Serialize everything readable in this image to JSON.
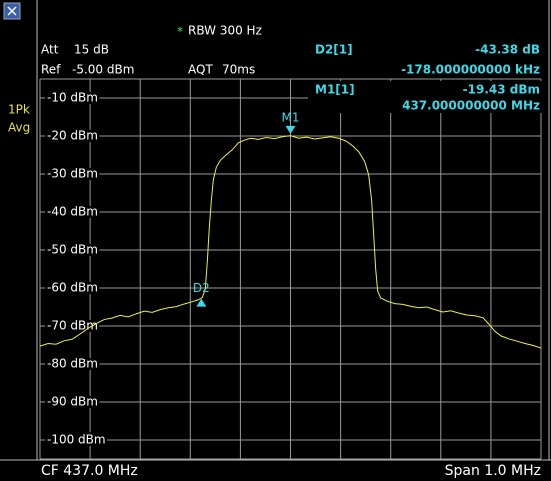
{
  "header": {
    "rbw_flag": "*",
    "rbw": "RBW 300 Hz",
    "att_label": "Att",
    "att": "15 dB",
    "ref_label": "Ref",
    "ref": "-5.00 dBm",
    "aqt_label": "AQT",
    "aqt": "70ms",
    "d2_label": "D2[1]",
    "d2_level": "-43.38 dB",
    "d2_freq": "-178.000000000 kHz",
    "m1_label": "M1[1]",
    "m1_level": "-19.43 dBm",
    "m1_freq": "437.000000000 MHz",
    "trace_mode": [
      "1Pk",
      "Avg"
    ]
  },
  "chart_data": {
    "type": "line",
    "x": [
      436.5,
      436.516,
      436.532,
      436.548,
      436.564,
      436.58,
      436.596,
      436.612,
      436.628,
      436.644,
      436.66,
      436.676,
      436.692,
      436.708,
      436.724,
      436.74,
      436.756,
      436.772,
      436.788,
      436.804,
      436.816,
      436.824,
      436.83,
      436.834,
      436.838,
      436.842,
      436.846,
      436.852,
      436.86,
      436.872,
      436.884,
      436.896,
      436.908,
      436.92,
      436.936,
      436.952,
      436.968,
      436.984,
      437.0,
      437.016,
      437.032,
      437.048,
      437.064,
      437.08,
      437.096,
      437.112,
      437.124,
      437.136,
      437.148,
      437.156,
      437.162,
      437.166,
      437.17,
      437.174,
      437.18,
      437.192,
      437.208,
      437.224,
      437.24,
      437.256,
      437.272,
      437.288,
      437.304,
      437.32,
      437.336,
      437.352,
      437.368,
      437.384,
      437.396,
      437.408,
      437.42,
      437.436,
      437.452,
      437.468,
      437.484,
      437.5
    ],
    "series": [
      {
        "color": "#f0f040",
        "values": [
          -75.3,
          -74.6,
          -74.8,
          -73.9,
          -73.5,
          -72.1,
          -70.6,
          -69.4,
          -68.3,
          -67.9,
          -67.2,
          -67.6,
          -66.8,
          -66.1,
          -66.4,
          -65.7,
          -65.2,
          -64.9,
          -64.2,
          -63.6,
          -63.1,
          -62.5,
          -60.2,
          -53,
          -44,
          -37,
          -31.5,
          -28.2,
          -26.4,
          -24.9,
          -23.6,
          -21.8,
          -21.1,
          -20.6,
          -20.9,
          -20.4,
          -20.7,
          -20.2,
          -19.9,
          -20.6,
          -20.3,
          -20.8,
          -20.5,
          -20.2,
          -20.6,
          -21.4,
          -22.6,
          -24.1,
          -26.7,
          -30.2,
          -37,
          -46,
          -55,
          -60.8,
          -62.6,
          -63.4,
          -64.1,
          -64.3,
          -64.8,
          -65.2,
          -65.0,
          -65.7,
          -66.3,
          -66.0,
          -66.6,
          -67.1,
          -67.3,
          -67.8,
          -69.5,
          -71.4,
          -72.6,
          -73.4,
          -74.0,
          -74.6,
          -75.1,
          -75.8
        ]
      }
    ],
    "xlim": [
      436.5,
      437.5
    ],
    "ylim": [
      -105,
      -5
    ],
    "yticks": [
      {
        "value": -10,
        "label": "-10 dBm"
      },
      {
        "value": -20,
        "label": "-20 dBm"
      },
      {
        "value": -30,
        "label": "-30 dBm"
      },
      {
        "value": -40,
        "label": "-40 dBm"
      },
      {
        "value": -50,
        "label": "-50 dBm"
      },
      {
        "value": -60,
        "label": "-60 dBm"
      },
      {
        "value": -70,
        "label": "-70 dBm"
      },
      {
        "value": -80,
        "label": "-80 dBm"
      },
      {
        "value": -90,
        "label": "-90 dBm"
      },
      {
        "value": -100,
        "label": "-100 dBm"
      }
    ],
    "grid": true,
    "markers": [
      {
        "label": "M1",
        "x": 437.0,
        "y": -19.43,
        "color": "#40d8e8",
        "direction": "down"
      },
      {
        "label": "D2",
        "x": 436.822,
        "y": -62.81,
        "color": "#40d8e8",
        "direction": "up"
      }
    ]
  },
  "footer": {
    "cf": "CF 437.0 MHz",
    "span": "Span 1.0 MHz"
  }
}
